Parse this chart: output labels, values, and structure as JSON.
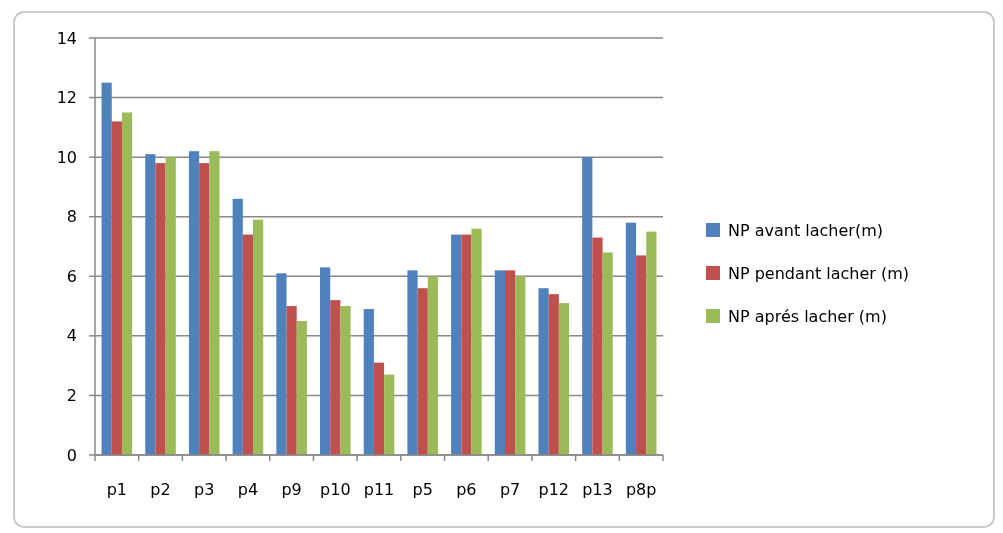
{
  "chart_data": {
    "type": "bar",
    "categories": [
      "p1",
      "p2",
      "p3",
      "p4",
      "p9",
      "p10",
      "p11",
      "p5",
      "p6",
      "p7",
      "p12",
      "p13",
      "p8p"
    ],
    "series": [
      {
        "name": "NP avant lacher(m)",
        "color": "#4f81bd",
        "values": [
          12.5,
          10.1,
          10.2,
          8.6,
          6.1,
          6.3,
          4.9,
          6.2,
          7.4,
          6.2,
          5.6,
          10.0,
          7.8
        ]
      },
      {
        "name": "NP pendant lacher (m)",
        "color": "#c0504d",
        "values": [
          11.2,
          9.8,
          9.8,
          7.4,
          5.0,
          5.2,
          3.1,
          5.6,
          7.4,
          6.2,
          5.4,
          7.3,
          6.7
        ]
      },
      {
        "name": "NP aprés lacher (m)",
        "color": "#9bbb59",
        "values": [
          11.5,
          10.0,
          10.2,
          7.9,
          4.5,
          5.0,
          2.7,
          6.0,
          7.6,
          6.0,
          5.1,
          6.8,
          7.5
        ]
      }
    ],
    "ylim": [
      0,
      14
    ],
    "yticks": [
      0,
      2,
      4,
      6,
      8,
      10,
      12,
      14
    ],
    "grid": "y",
    "legend": "right"
  }
}
